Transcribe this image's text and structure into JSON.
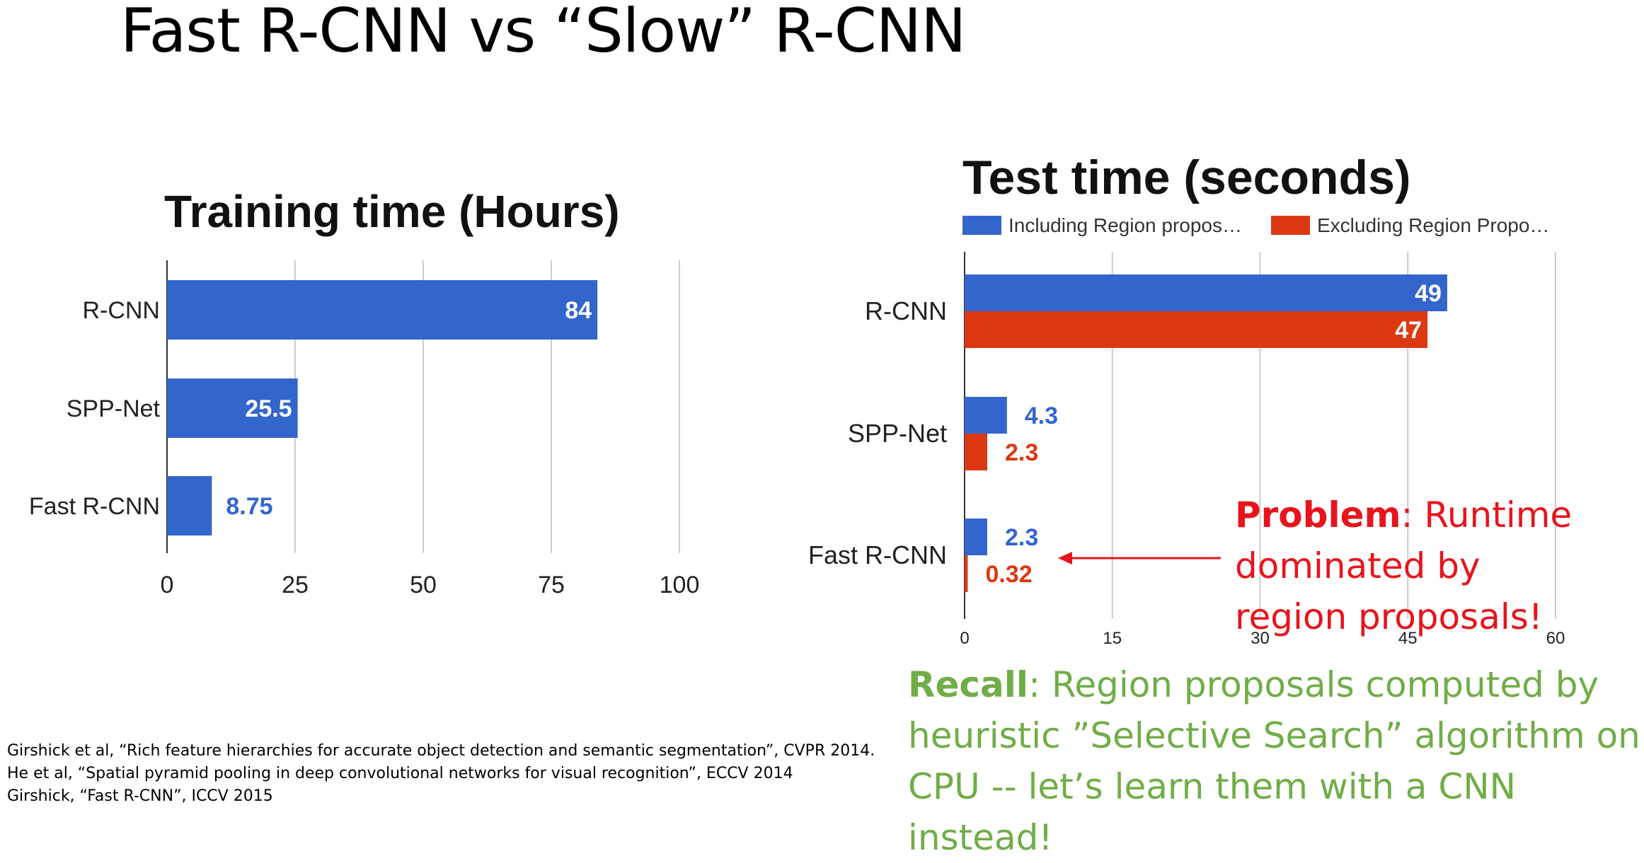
{
  "slide": {
    "title": "Fast R-CNN vs “Slow” R-CNN",
    "problem": {
      "label": "Problem",
      "text": ": Runtime dominated by region proposals!"
    },
    "recall": {
      "label": "Recall",
      "text": ": Region proposals computed by heuristic ”Selective Search” algorithm on CPU -- let’s learn them with a CNN instead!"
    },
    "references": [
      "Girshick et al, “Rich feature hierarchies for accurate object detection and semantic segmentation”, CVPR 2014.",
      "He et al, “Spatial pyramid pooling in deep convolutional networks for visual recognition”, ECCV 2014",
      "Girshick, “Fast R-CNN”, ICCV 2015"
    ]
  },
  "colors": {
    "blue": "#3366cc",
    "red": "#dc3912",
    "grid": "#cccccc",
    "axis": "#333333",
    "problem": "#e8141c",
    "recall": "#70ad47"
  },
  "chart_data": [
    {
      "type": "bar",
      "orientation": "horizontal",
      "title": "Training time (Hours)",
      "categories": [
        "R-CNN",
        "SPP-Net",
        "Fast R-CNN"
      ],
      "series": [
        {
          "values": [
            84,
            25.5,
            8.75
          ]
        }
      ],
      "data_labels": [
        "84",
        "25.5",
        "8.75"
      ],
      "xlim": [
        0,
        100
      ],
      "xticks": [
        0,
        25,
        50,
        75,
        100
      ],
      "grid": true,
      "legend": "none"
    },
    {
      "type": "bar",
      "orientation": "horizontal",
      "title": "Test time (seconds)",
      "categories": [
        "R-CNN",
        "SPP-Net",
        "Fast R-CNN"
      ],
      "series": [
        {
          "name": "Including Region propos…",
          "values": [
            49,
            4.3,
            2.3
          ],
          "labels": [
            "49",
            "4.3",
            "2.3"
          ]
        },
        {
          "name": "Excluding Region Propo…",
          "values": [
            47,
            2.3,
            0.32
          ],
          "labels": [
            "47",
            "2.3",
            "0.32"
          ]
        }
      ],
      "xlim": [
        0,
        60
      ],
      "xticks": [
        0,
        15,
        30,
        45,
        60
      ],
      "grid": true,
      "legend": "top"
    }
  ]
}
